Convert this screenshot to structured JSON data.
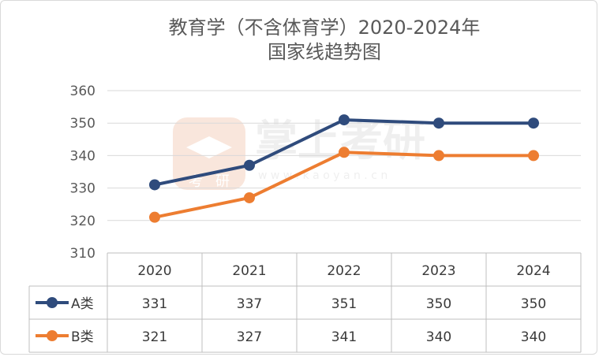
{
  "chart_data": {
    "type": "line",
    "title": [
      "教育学（不含体育学）2020-2024年",
      "国家线趋势图"
    ],
    "categories": [
      "2020",
      "2021",
      "2022",
      "2023",
      "2024"
    ],
    "series": [
      {
        "name": "A类",
        "values": [
          331,
          337,
          351,
          350,
          350
        ],
        "color": "#2f4b7c"
      },
      {
        "name": "B类",
        "values": [
          321,
          327,
          341,
          340,
          340
        ],
        "color": "#ed7d31"
      }
    ],
    "ylim": [
      310,
      360
    ],
    "yticks": [
      310,
      320,
      330,
      340,
      350,
      360
    ],
    "grid": true,
    "legend": "data-table-left"
  },
  "watermark": {
    "text": "掌上考研",
    "url": "w w w . k a o y a n . c n",
    "logo_text": [
      "考",
      "研"
    ]
  }
}
